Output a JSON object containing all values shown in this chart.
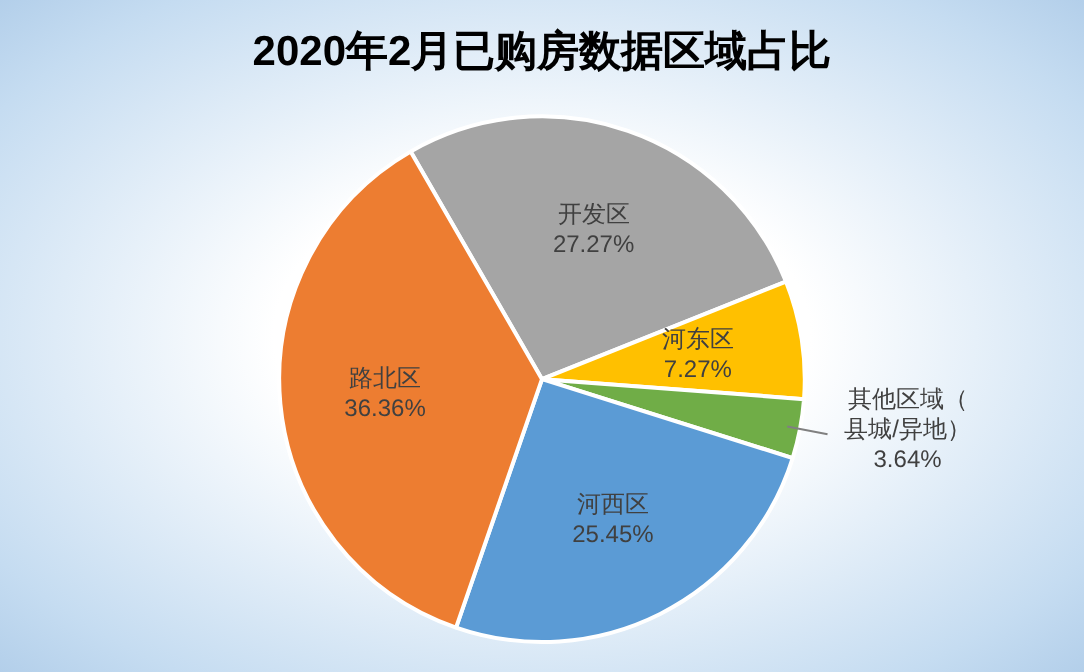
{
  "chart_data": {
    "type": "pie",
    "title": "2020年2月已购房数据区域占比",
    "categories": [
      "开发区",
      "河东区",
      "其他区域（县城/异地）",
      "河西区",
      "路北区"
    ],
    "values": [
      27.27,
      7.27,
      3.64,
      25.45,
      36.36
    ],
    "colors": [
      "#a5a5a5",
      "#ffc000",
      "#70ad47",
      "#5b9bd5",
      "#ed7d31"
    ],
    "value_labels": [
      "27.27%",
      "7.27%",
      "3.64%",
      "25.45%",
      "36.36%"
    ],
    "legend": false
  }
}
